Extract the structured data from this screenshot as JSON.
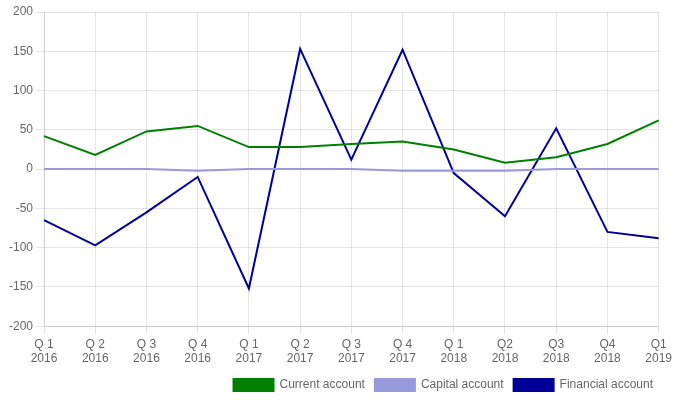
{
  "chart_data": {
    "type": "line",
    "categories": [
      "Q 1\n2016",
      "Q 2\n2016",
      "Q 3\n2016",
      "Q 4\n2016",
      "Q 1\n2017",
      "Q 2\n2017",
      "Q 3\n2017",
      "Q 4\n2017",
      "Q 1\n2018",
      "Q2\n2018",
      "Q3\n2018",
      "Q4\n2018",
      "Q1\n2019"
    ],
    "series": [
      {
        "name": "Current account",
        "color": "#008000",
        "values": [
          42,
          18,
          48,
          55,
          28,
          28,
          32,
          35,
          25,
          8,
          15,
          32,
          62
        ]
      },
      {
        "name": "Capital account",
        "color": "#9999dd",
        "values": [
          0,
          0,
          0,
          -2,
          0,
          0,
          0,
          -2,
          -2,
          -2,
          0,
          0,
          0
        ]
      },
      {
        "name": "Financial account",
        "color": "#000099",
        "values": [
          -65,
          -97,
          -55,
          -10,
          -152,
          153,
          12,
          152,
          -5,
          -60,
          52,
          -80,
          -88
        ]
      }
    ],
    "ylim": [
      -200,
      200
    ],
    "yticks": [
      -200,
      -150,
      -100,
      -50,
      0,
      50,
      100,
      150,
      200
    ],
    "grid": true,
    "legend": "lower right"
  }
}
